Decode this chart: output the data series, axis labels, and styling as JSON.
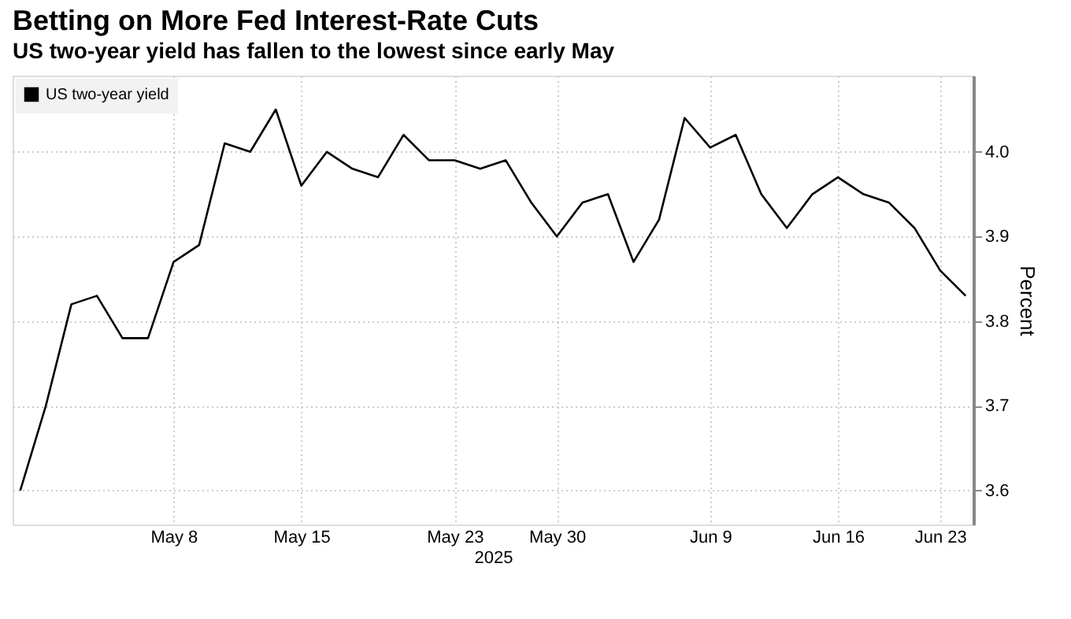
{
  "chart_data": {
    "type": "line",
    "title": "Betting on More Fed Interest-Rate Cuts",
    "subtitle": "US two-year yield has fallen to the lowest since early May",
    "xlabel": "2025",
    "ylabel": "Percent",
    "categories": [
      null,
      null,
      null,
      null,
      null,
      null,
      "May 8",
      null,
      null,
      null,
      null,
      "May 15",
      null,
      null,
      null,
      null,
      null,
      "May 23",
      null,
      null,
      null,
      "May 30",
      null,
      null,
      null,
      null,
      null,
      "Jun 9",
      null,
      null,
      null,
      null,
      "Jun 16",
      null,
      null,
      null,
      "Jun 23",
      null
    ],
    "series": [
      {
        "name": "US two-year yield",
        "color": "#000000",
        "values": [
          3.6,
          3.7,
          3.82,
          3.83,
          3.78,
          3.78,
          3.87,
          3.89,
          4.01,
          4.0,
          4.05,
          3.96,
          4.0,
          3.98,
          3.97,
          4.02,
          3.99,
          3.99,
          3.98,
          3.99,
          3.94,
          3.9,
          3.94,
          3.95,
          3.87,
          3.92,
          4.04,
          4.005,
          4.02,
          3.95,
          3.91,
          3.95,
          3.97,
          3.95,
          3.94,
          3.91,
          3.86,
          3.83
        ]
      }
    ],
    "ylim": [
      3.56,
      4.09
    ],
    "yticks": [
      3.6,
      3.7,
      3.8,
      3.9,
      {
        "value": 4.0,
        "label": "4.0"
      }
    ],
    "grid": true,
    "legend": "top left",
    "marker": "none",
    "line_style": "solid"
  }
}
